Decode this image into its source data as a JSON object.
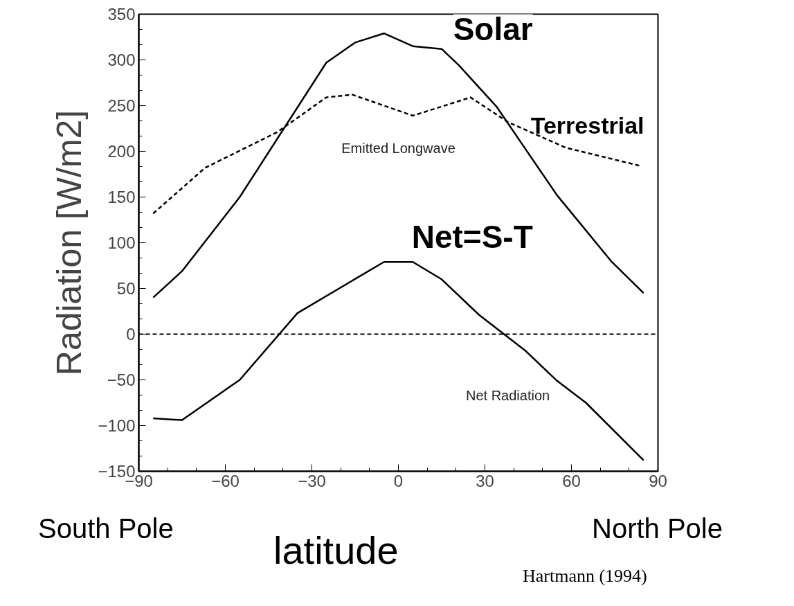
{
  "chart_data": {
    "type": "line",
    "xlabel": "latitude",
    "ylabel": "Radiation [W/m2]",
    "xlim": [
      -90,
      90
    ],
    "xticks": [
      -90,
      -60,
      -30,
      0,
      30,
      60,
      90
    ],
    "ylim": [
      -150,
      350
    ],
    "yticks": [
      -150,
      -100,
      -50,
      0,
      50,
      100,
      150,
      200,
      250,
      300,
      350
    ],
    "grid": false,
    "marker": "none",
    "series": [
      {
        "name": "Solar",
        "color": "#000000",
        "line_style": "solid",
        "x": [
          -85,
          -75,
          -55,
          -25,
          -15,
          -5,
          5,
          15,
          21,
          34,
          55,
          74,
          85
        ],
        "values": [
          40,
          69,
          150,
          297,
          319,
          329,
          315,
          312,
          294,
          249,
          152,
          79,
          45
        ]
      },
      {
        "name": "Terrestrial",
        "color": "#000000",
        "line_style": "dashed",
        "x": [
          -85,
          -67,
          -42,
          -25,
          -16,
          5,
          25,
          38,
          58,
          84
        ],
        "values": [
          132,
          182,
          221,
          259,
          262,
          239,
          259,
          232,
          204,
          184
        ]
      },
      {
        "name": "Net=S-T",
        "color": "#000000",
        "line_style": "solid",
        "x": [
          -85,
          -75,
          -55,
          -35,
          -5,
          5,
          15,
          28,
          44,
          55,
          65,
          85
        ],
        "values": [
          -92,
          -94,
          -50,
          23,
          79,
          79,
          60,
          21,
          -18,
          -51,
          -75,
          -138
        ]
      }
    ],
    "ref_lines": [
      {
        "axis": "y",
        "value": 0,
        "color": "#000000",
        "line_style": "dashed"
      }
    ],
    "annotations": [
      "Emitted Longwave",
      "Net Radiation",
      "South Pole",
      "North Pole",
      "Hartmann (1994)"
    ]
  }
}
